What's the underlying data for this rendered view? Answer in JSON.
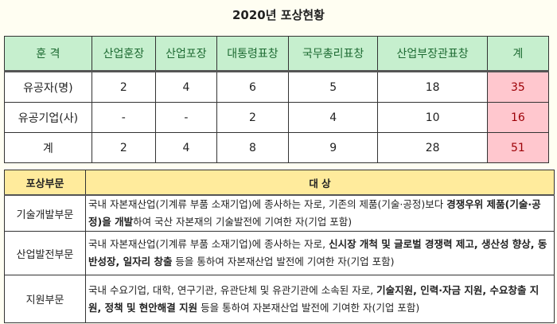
{
  "title": "2020년 포상현황",
  "summary": {
    "headers": [
      "훈 격",
      "산업훈장",
      "산업포장",
      "대통령표창",
      "국무총리표창",
      "산업부장관표창",
      "계"
    ],
    "rows": [
      [
        "유공자(명)",
        "2",
        "4",
        "6",
        "5",
        "18",
        "35"
      ],
      [
        "유공기업(사)",
        "-",
        "-",
        "2",
        "4",
        "10",
        "16"
      ],
      [
        "계",
        "2",
        "4",
        "8",
        "9",
        "28",
        "51"
      ]
    ]
  },
  "categories": {
    "headers": [
      "포상부문",
      "대 상"
    ],
    "rows": [
      {
        "name": "기술개발부문",
        "segments": [
          {
            "text": "국내 자본재산업(기계류 부품 소재기업)에 종사하는 자로, 기존의 제품(기술·공정)보다 ",
            "bold": false
          },
          {
            "text": "경쟁우위 제품(기술·공정)을 개발",
            "bold": true
          },
          {
            "text": "하여 국산 자본재의 기술발전에 기여한 자(기업 포함)",
            "bold": false
          }
        ]
      },
      {
        "name": "산업발전부문",
        "segments": [
          {
            "text": "국내 자본재산업(기계류 부품 소재기업)에 종사하는 자로, ",
            "bold": false
          },
          {
            "text": "신시장 개척 및 글로벌 경쟁력 제고, 생산성 향상, 동반성장, 일자리 창출",
            "bold": true
          },
          {
            "text": " 등을 통하여 자본재산업 발전에 기여한 자(기업 포함)",
            "bold": false
          }
        ]
      },
      {
        "name": "지원부문",
        "segments": [
          {
            "text": "국내 수요기업, 대학, 연구기관, 유관단체 및 유관기관에 소속된 자로, ",
            "bold": false
          },
          {
            "text": "기술지원, 인력·자금 지원, 수요창출 지원, 정책 및 현안해결 지원",
            "bold": true
          },
          {
            "text": " 등을 통하여 자본재산업 발전에 기여한 자(기업 포함)",
            "bold": false
          }
        ]
      }
    ]
  }
}
